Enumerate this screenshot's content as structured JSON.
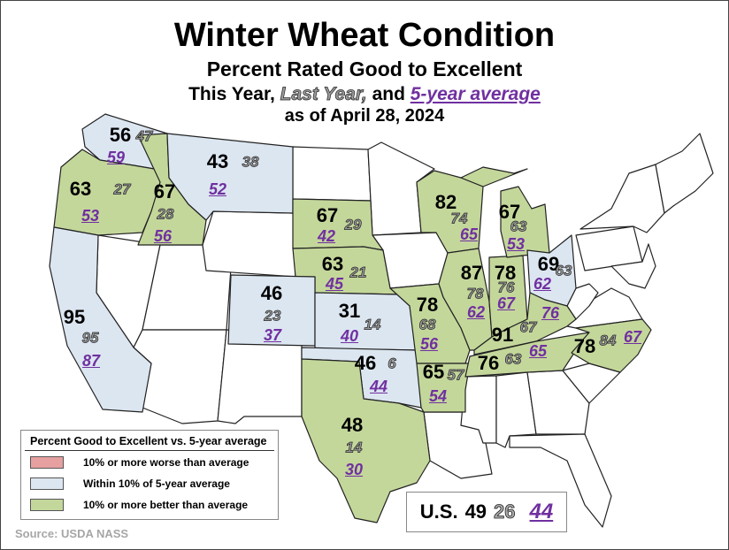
{
  "title": "Winter Wheat Condition",
  "subtitle": "Percent Rated Good to Excellent",
  "line3": {
    "this_year": "This Year,",
    "last_year": "Last Year,",
    "and": "and",
    "five_year": "5-year average"
  },
  "as_of": "as of April 28, 2024",
  "colors": {
    "worse": "#e6a0a0",
    "within": "#dce6f1",
    "better": "#c4d79b",
    "five_year_text": "#7030a0"
  },
  "states": {
    "WA": {
      "this_year": "56",
      "last_year": "47",
      "five_year": "59",
      "category": "within"
    },
    "OR": {
      "this_year": "63",
      "last_year": "27",
      "five_year": "53",
      "category": "better"
    },
    "ID": {
      "this_year": "67",
      "last_year": "28",
      "five_year": "56",
      "category": "better"
    },
    "MT": {
      "this_year": "43",
      "last_year": "38",
      "five_year": "52",
      "category": "within"
    },
    "CA": {
      "this_year": "95",
      "last_year": "95",
      "five_year": "87",
      "category": "within"
    },
    "SD": {
      "this_year": "67",
      "last_year": "29",
      "five_year": "42",
      "category": "better"
    },
    "NE": {
      "this_year": "63",
      "last_year": "21",
      "five_year": "45",
      "category": "better"
    },
    "CO": {
      "this_year": "46",
      "last_year": "23",
      "five_year": "37",
      "category": "within"
    },
    "KS": {
      "this_year": "31",
      "last_year": "14",
      "five_year": "40",
      "category": "within"
    },
    "OK": {
      "this_year": "46",
      "last_year": "6",
      "five_year": "44",
      "category": "within"
    },
    "TX": {
      "this_year": "48",
      "last_year": "14",
      "five_year": "30",
      "category": "better"
    },
    "MO": {
      "this_year": "78",
      "last_year": "68",
      "five_year": "56",
      "category": "better"
    },
    "AR": {
      "this_year": "65",
      "last_year": "57",
      "five_year": "54",
      "category": "better"
    },
    "IL": {
      "this_year": "87",
      "last_year": "78",
      "five_year": "62",
      "category": "better"
    },
    "IN": {
      "this_year": "78",
      "last_year": "76",
      "five_year": "67",
      "category": "better"
    },
    "OH": {
      "this_year": "69",
      "last_year": "63",
      "five_year": "62",
      "category": "within"
    },
    "MI": {
      "this_year": "67",
      "last_year": "63",
      "five_year": "53",
      "category": "better"
    },
    "WI": {
      "this_year": "82",
      "last_year": "74",
      "five_year": "65",
      "category": "better"
    },
    "KY": {
      "this_year": "91",
      "last_year": "67",
      "five_year": "76",
      "category": "better"
    },
    "TN": {
      "this_year": "76",
      "last_year": "63",
      "five_year": "65",
      "category": "better"
    },
    "NC": {
      "this_year": "78",
      "last_year": "84",
      "five_year": "67",
      "category": "better"
    }
  },
  "legend": {
    "title": "Percent Good to Excellent vs. 5-year average",
    "items": [
      {
        "label": "10% or more worse than average"
      },
      {
        "label": "Within 10% of 5-year average"
      },
      {
        "label": "10% or more better than average"
      }
    ]
  },
  "us": {
    "label": "U.S.",
    "this_year": "49",
    "last_year": "26",
    "five_year": "44"
  },
  "source": "Source: USDA NASS"
}
